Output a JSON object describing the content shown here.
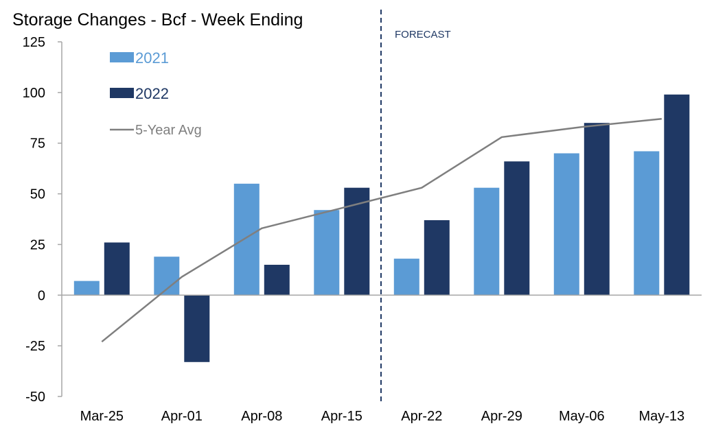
{
  "chart_data": {
    "type": "bar",
    "title": "Storage Changes - Bcf - Week Ending",
    "categories": [
      "Mar-25",
      "Apr-01",
      "Apr-08",
      "Apr-15",
      "Apr-22",
      "Apr-29",
      "May-06",
      "May-13"
    ],
    "series": [
      {
        "name": "2021",
        "type": "bar",
        "color": "#5b9bd5",
        "values": [
          7,
          19,
          55,
          42,
          18,
          53,
          70,
          71
        ]
      },
      {
        "name": "2022",
        "type": "bar",
        "color": "#1f3864",
        "values": [
          26,
          -33,
          15,
          53,
          37,
          66,
          85,
          99
        ]
      },
      {
        "name": "5-Year Avg",
        "type": "line",
        "color": "#7f7f7f",
        "values": [
          -23,
          9,
          33,
          43,
          53,
          78,
          83,
          87
        ]
      }
    ],
    "ylim": [
      -50,
      125
    ],
    "yticks": [
      -50,
      -25,
      0,
      25,
      50,
      75,
      100,
      125
    ],
    "ytick_labels": [
      "-50",
      "-25",
      "0",
      "25",
      "50",
      "75",
      "100",
      "125"
    ],
    "xlabel": "",
    "ylabel": "",
    "legend": "top-left",
    "forecast": {
      "label": "FORECAST",
      "after_category": "Apr-15"
    },
    "grid": false
  }
}
